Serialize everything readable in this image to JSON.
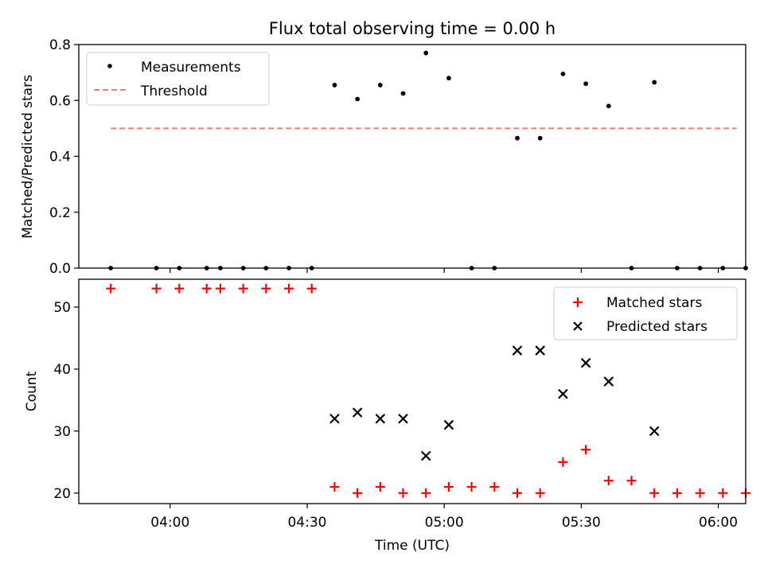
{
  "chart_data": [
    {
      "type": "scatter",
      "title": "Flux total observing time = 0.00 h",
      "xlabel": "",
      "ylabel": "Matched/Predicted stars",
      "xlim": [
        "03:40",
        "06:06"
      ],
      "ylim": [
        0,
        0.8
      ],
      "yticks": [
        "0.0",
        "0.2",
        "0.4",
        "0.6",
        "0.8"
      ],
      "legend_position": "top-left",
      "series": [
        {
          "name": "Measurements",
          "marker": "dot",
          "color": "#000000",
          "points": [
            {
              "x": "03:47",
              "y": 0.0
            },
            {
              "x": "03:57",
              "y": 0.0
            },
            {
              "x": "04:02",
              "y": 0.0
            },
            {
              "x": "04:08",
              "y": 0.0
            },
            {
              "x": "04:11",
              "y": 0.0
            },
            {
              "x": "04:16",
              "y": 0.0
            },
            {
              "x": "04:21",
              "y": 0.0
            },
            {
              "x": "04:26",
              "y": 0.0
            },
            {
              "x": "04:31",
              "y": 0.0
            },
            {
              "x": "04:36",
              "y": 0.655
            },
            {
              "x": "04:41",
              "y": 0.605
            },
            {
              "x": "04:46",
              "y": 0.655
            },
            {
              "x": "04:51",
              "y": 0.625
            },
            {
              "x": "04:56",
              "y": 0.77
            },
            {
              "x": "05:01",
              "y": 0.68
            },
            {
              "x": "05:06",
              "y": 0.0
            },
            {
              "x": "05:11",
              "y": 0.0
            },
            {
              "x": "05:16",
              "y": 0.465
            },
            {
              "x": "05:21",
              "y": 0.465
            },
            {
              "x": "05:26",
              "y": 0.695
            },
            {
              "x": "05:31",
              "y": 0.66
            },
            {
              "x": "05:36",
              "y": 0.58
            },
            {
              "x": "05:41",
              "y": 0.0
            },
            {
              "x": "05:46",
              "y": 0.665
            },
            {
              "x": "05:51",
              "y": 0.0
            },
            {
              "x": "05:56",
              "y": 0.0
            },
            {
              "x": "06:01",
              "y": 0.0
            },
            {
              "x": "06:06",
              "y": 0.0
            }
          ]
        },
        {
          "name": "Threshold",
          "marker": "dashed-line",
          "color": "#ff7777",
          "points": [
            {
              "x": "03:47",
              "y": 0.5
            },
            {
              "x": "06:04",
              "y": 0.5
            }
          ]
        }
      ]
    },
    {
      "type": "scatter",
      "title": "",
      "xlabel": "Time (UTC)",
      "ylabel": "Count",
      "xlim": [
        "03:40",
        "06:06"
      ],
      "ylim": [
        18.3,
        54.5
      ],
      "yticks": [
        "20",
        "30",
        "40",
        "50"
      ],
      "xticks": [
        "04:00",
        "04:30",
        "05:00",
        "05:30",
        "06:00"
      ],
      "legend_position": "top-right",
      "series": [
        {
          "name": "Matched stars",
          "marker": "plus",
          "color": "#ff0000",
          "points": [
            {
              "x": "03:47",
              "y": 53
            },
            {
              "x": "03:57",
              "y": 53
            },
            {
              "x": "04:02",
              "y": 53
            },
            {
              "x": "04:08",
              "y": 53
            },
            {
              "x": "04:11",
              "y": 53
            },
            {
              "x": "04:16",
              "y": 53
            },
            {
              "x": "04:21",
              "y": 53
            },
            {
              "x": "04:26",
              "y": 53
            },
            {
              "x": "04:31",
              "y": 53
            },
            {
              "x": "04:36",
              "y": 21
            },
            {
              "x": "04:41",
              "y": 20
            },
            {
              "x": "04:46",
              "y": 21
            },
            {
              "x": "04:51",
              "y": 20
            },
            {
              "x": "04:56",
              "y": 20
            },
            {
              "x": "05:01",
              "y": 21
            },
            {
              "x": "05:06",
              "y": 21
            },
            {
              "x": "05:11",
              "y": 21
            },
            {
              "x": "05:16",
              "y": 20
            },
            {
              "x": "05:21",
              "y": 20
            },
            {
              "x": "05:26",
              "y": 25
            },
            {
              "x": "05:31",
              "y": 27
            },
            {
              "x": "05:36",
              "y": 22
            },
            {
              "x": "05:41",
              "y": 22
            },
            {
              "x": "05:46",
              "y": 20
            },
            {
              "x": "05:51",
              "y": 20
            },
            {
              "x": "05:56",
              "y": 20
            },
            {
              "x": "06:01",
              "y": 20
            },
            {
              "x": "06:06",
              "y": 20
            }
          ]
        },
        {
          "name": "Predicted stars",
          "marker": "x",
          "color": "#000000",
          "points": [
            {
              "x": "04:36",
              "y": 32
            },
            {
              "x": "04:41",
              "y": 33
            },
            {
              "x": "04:46",
              "y": 32
            },
            {
              "x": "04:51",
              "y": 32
            },
            {
              "x": "04:56",
              "y": 26
            },
            {
              "x": "05:01",
              "y": 31
            },
            {
              "x": "05:16",
              "y": 43
            },
            {
              "x": "05:21",
              "y": 43
            },
            {
              "x": "05:26",
              "y": 36
            },
            {
              "x": "05:31",
              "y": 41
            },
            {
              "x": "05:36",
              "y": 38
            },
            {
              "x": "05:46",
              "y": 30
            }
          ]
        }
      ]
    }
  ]
}
